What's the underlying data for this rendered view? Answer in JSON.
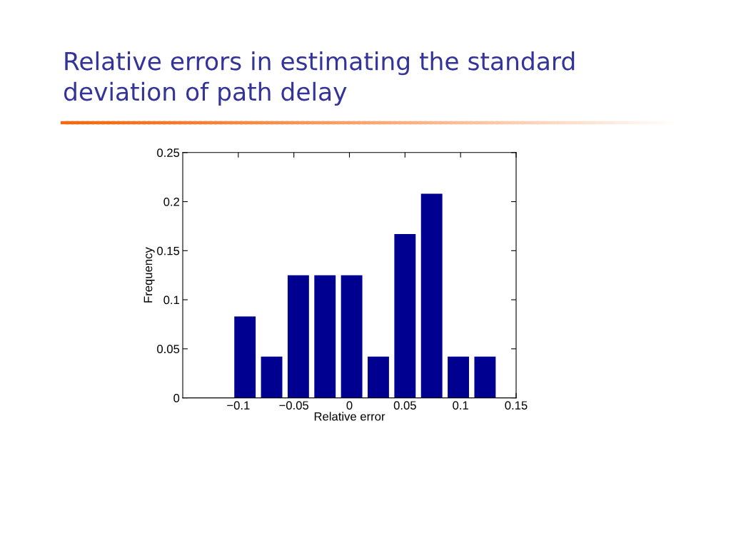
{
  "chart_data": {
    "type": "bar",
    "title": "Relative errors in estimating the standard deviation of path delay",
    "xlabel": "Relative error",
    "ylabel": "Frequency",
    "x": [
      -0.094,
      -0.07,
      -0.046,
      -0.022,
      0.002,
      0.026,
      0.05,
      0.074,
      0.098,
      0.122
    ],
    "values": [
      0.083,
      0.042,
      0.125,
      0.125,
      0.125,
      0.042,
      0.167,
      0.208,
      0.042,
      0.042
    ],
    "color": "#000090",
    "xlim": [
      -0.15,
      0.15
    ],
    "xticks": [
      {
        "value": -0.1,
        "label": "−0.1"
      },
      {
        "value": -0.05,
        "label": "−0.05"
      },
      0,
      0.05,
      0.1,
      0.15
    ],
    "ylim": [
      0,
      0.25
    ],
    "yticks": [
      0,
      0.05,
      0.1,
      0.15,
      0.2,
      0.25
    ]
  }
}
